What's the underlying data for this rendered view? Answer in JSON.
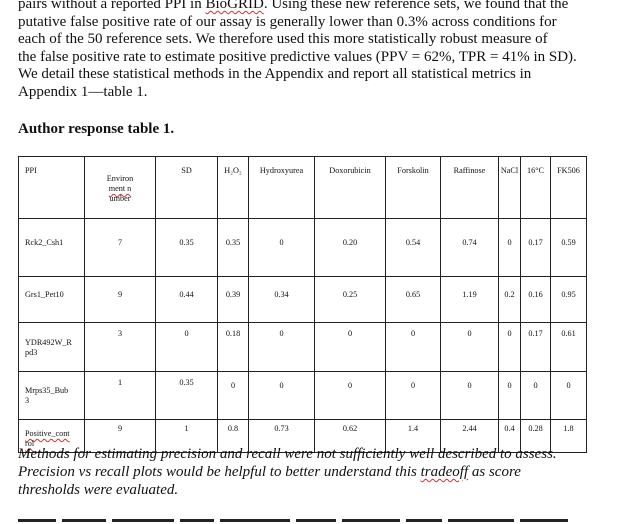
{
  "paragraph": {
    "line1_pre": "pairs without a reported PPI in ",
    "line1_flag": "BioGRID",
    "line1_post": ". Using these new reference sets, we found that the",
    "line2": "putative false positive rate of our assay is generally lower than 0.3% across conditions for",
    "line3": "each of the 50 reference sets. We therefore used this more statistically robust measure of",
    "line4": "the false positive rate to estimate positive predictive values (PPV = 62%, TPR = 41% in SD).",
    "line5": "We detail these statistical methods in the Appendix and report all statistical metrics in",
    "line6": "Appendix 1—table 1."
  },
  "table_caption": "Author response table 1.",
  "table": {
    "headers": {
      "ppi": "PPI",
      "env_line1": "Environ",
      "env_line2_flag": "ment n",
      "env_line3": "umber",
      "sd": "SD",
      "h2o2": "H₂O₂",
      "hydroxyurea": "Hydroxyurea",
      "doxorubicin": "Doxorubicin",
      "forskolin": "Forskolin",
      "raffinose": "Raffinose",
      "nacl": "NaCl",
      "temp": "16°C",
      "fk506": "FK506"
    },
    "rows": [
      {
        "name_line1": "Rck2_Csh1",
        "name_line2": "",
        "env": "7",
        "sd": "0.35",
        "h2o2": "0.35",
        "hydroxyurea": "0",
        "doxorubicin": "0.20",
        "forskolin": "0.54",
        "raffinose": "0.74",
        "nacl": "0",
        "temp": "0.17",
        "fk506": "0.59"
      },
      {
        "name_line1": "Grs1_Pet10",
        "name_line2": "",
        "env": "9",
        "sd": "0.44",
        "h2o2": "0.39",
        "hydroxyurea": "0.34",
        "doxorubicin": "0.25",
        "forskolin": "0.65",
        "raffinose": "1.19",
        "nacl": "0.2",
        "temp": "0.16",
        "fk506": "0.95"
      },
      {
        "name_line1": "YDR492W_R",
        "name_line2": "pd3",
        "env": "3",
        "sd": "0",
        "h2o2": "0.18",
        "hydroxyurea": "0",
        "doxorubicin": "0",
        "forskolin": "0",
        "raffinose": "0",
        "nacl": "0",
        "temp": "0.17",
        "fk506": "0.61"
      },
      {
        "name_line1": "Mrps35_Bub",
        "name_line2": "3",
        "env": "1",
        "sd": "0.35",
        "h2o2": "0",
        "hydroxyurea": "0",
        "doxorubicin": "0",
        "forskolin": "0",
        "raffinose": "0",
        "nacl": "0",
        "temp": "0",
        "fk506": "0"
      },
      {
        "name_line1": "Positive_cont",
        "name_line2": "rol",
        "env": "9",
        "sd": "1",
        "h2o2": "0.8",
        "hydroxyurea": "0.73",
        "doxorubicin": "0.62",
        "forskolin": "1.4",
        "raffinose": "2.44",
        "nacl": "0.4",
        "temp": "0.28",
        "fk506": "1.8"
      }
    ]
  },
  "footer": {
    "line1": "Methods for estimating precision and recall were not sufficiently well described to assess.",
    "line2_pre": "Precision vs recall plots would be helpful to better understand this ",
    "line2_flag": "tradeoff",
    "line2_post": " as score",
    "line3": "thresholds were evaluated."
  }
}
